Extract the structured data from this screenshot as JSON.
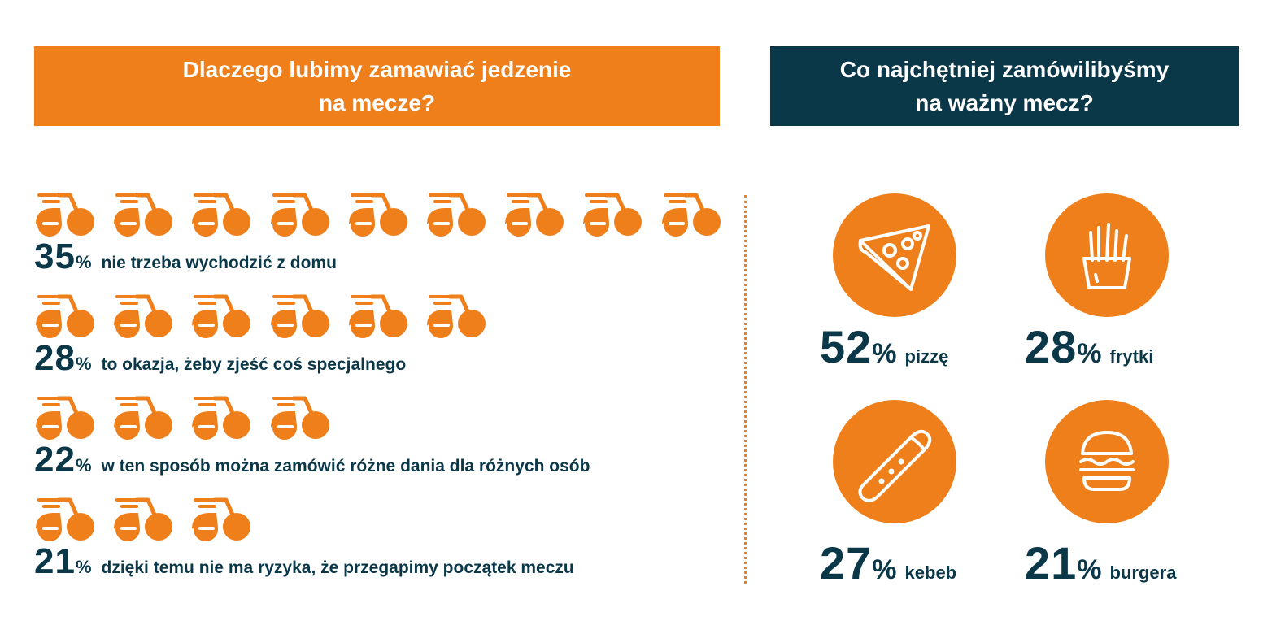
{
  "headers": {
    "left": {
      "line1": "Dlaczego lubimy zamawiać jedzenie",
      "line2": "na mecze?"
    },
    "right": {
      "line1": "Co najchętniej zamówilibyśmy",
      "line2": "na ważny mecz?"
    }
  },
  "colors": {
    "accent": "#ef7f1a",
    "dark": "#0b3848"
  },
  "chart_data": [
    {
      "type": "bar",
      "categories": [
        "nie trzeba wychodzić z domu",
        "to okazja, żeby zjeść coś specjalnego",
        "w ten sposób można zamówić różne dania dla różnych osób",
        "dzięki temu nie ma ryzyka, że przegapimy początek meczu"
      ],
      "values": [
        35,
        28,
        22,
        21
      ],
      "icon_counts": [
        9,
        6,
        4,
        3
      ],
      "value_labels": [
        "35",
        "28",
        "22",
        "21"
      ],
      "unit": "%",
      "icon": "delivery-scooter-icon",
      "title": "Dlaczego lubimy zamawiać jedzenie na mecze?"
    },
    {
      "type": "table",
      "categories": [
        "pizzę",
        "frytki",
        "kebeb",
        "burgera"
      ],
      "values": [
        52,
        28,
        27,
        21
      ],
      "value_labels": [
        "52",
        "28",
        "27",
        "21"
      ],
      "unit": "%",
      "icons": [
        "pizza-icon",
        "fries-icon",
        "kebab-icon",
        "burger-icon"
      ],
      "title": "Co najchętniej zamówilibyśmy na ważny mecz?"
    }
  ]
}
